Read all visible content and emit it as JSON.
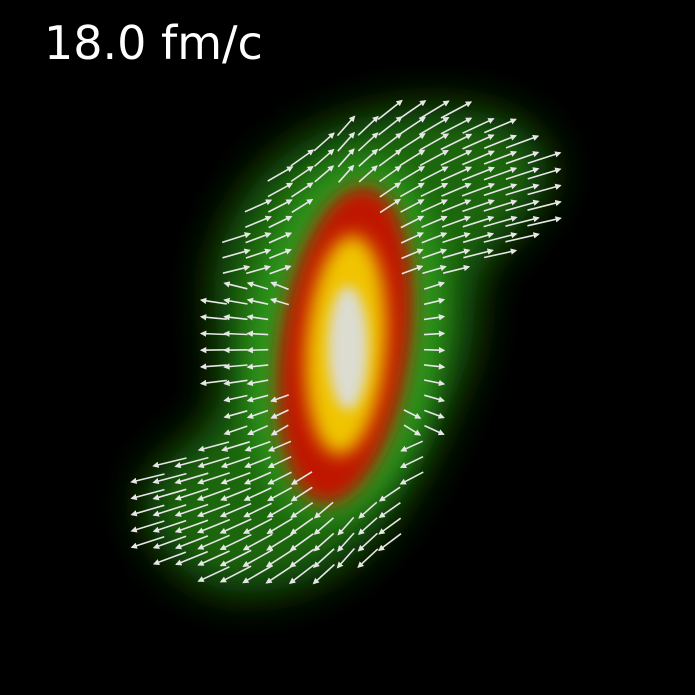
{
  "time_label": "18.0 fm/c",
  "colors": {
    "background": "#000000",
    "outer_halo": "#1f7a12",
    "mid_density": "#c81a00",
    "inner_density": "#f0c800",
    "core": "#d8d8cc",
    "arrows": "#e6e6e6",
    "text": "#ffffff"
  }
}
